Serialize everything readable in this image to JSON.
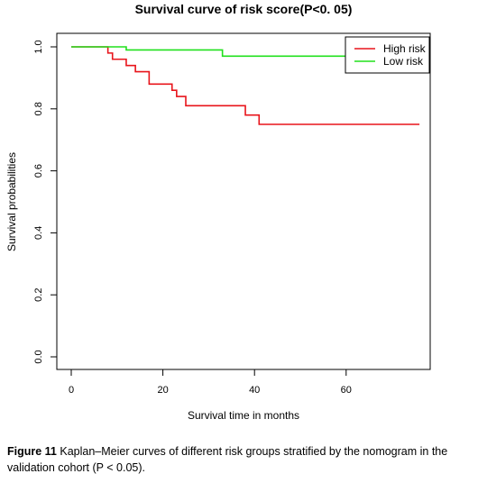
{
  "chart_data": {
    "type": "line",
    "title": "Survival curve of risk score(P<0. 05)",
    "xlabel": "Survival time in months",
    "ylabel": "Survival probabilities",
    "xlim": [
      0,
      80
    ],
    "ylim": [
      0,
      1.0
    ],
    "x_ticks": [
      "0",
      "20",
      "40",
      "60"
    ],
    "y_ticks": [
      "0.0",
      "0.2",
      "0.4",
      "0.6",
      "0.8",
      "1.0"
    ],
    "legend_position": "top-right",
    "series": [
      {
        "name": "High risk",
        "color": "#e8141b",
        "step_points": [
          [
            0,
            1.0
          ],
          [
            8,
            0.98
          ],
          [
            9,
            0.96
          ],
          [
            12,
            0.94
          ],
          [
            14,
            0.92
          ],
          [
            17,
            0.88
          ],
          [
            22,
            0.86
          ],
          [
            23,
            0.84
          ],
          [
            25,
            0.81
          ],
          [
            38,
            0.78
          ],
          [
            41,
            0.75
          ],
          [
            76,
            0.75
          ]
        ]
      },
      {
        "name": "Low risk",
        "color": "#20e01c",
        "step_points": [
          [
            0,
            1.0
          ],
          [
            12,
            0.99
          ],
          [
            33,
            0.97
          ],
          [
            64,
            0.97
          ]
        ]
      }
    ]
  },
  "caption": {
    "label": "Figure 11",
    "text": " Kaplan–Meier curves of different risk groups stratified by the nomogram in the validation cohort (P < 0.05)."
  }
}
